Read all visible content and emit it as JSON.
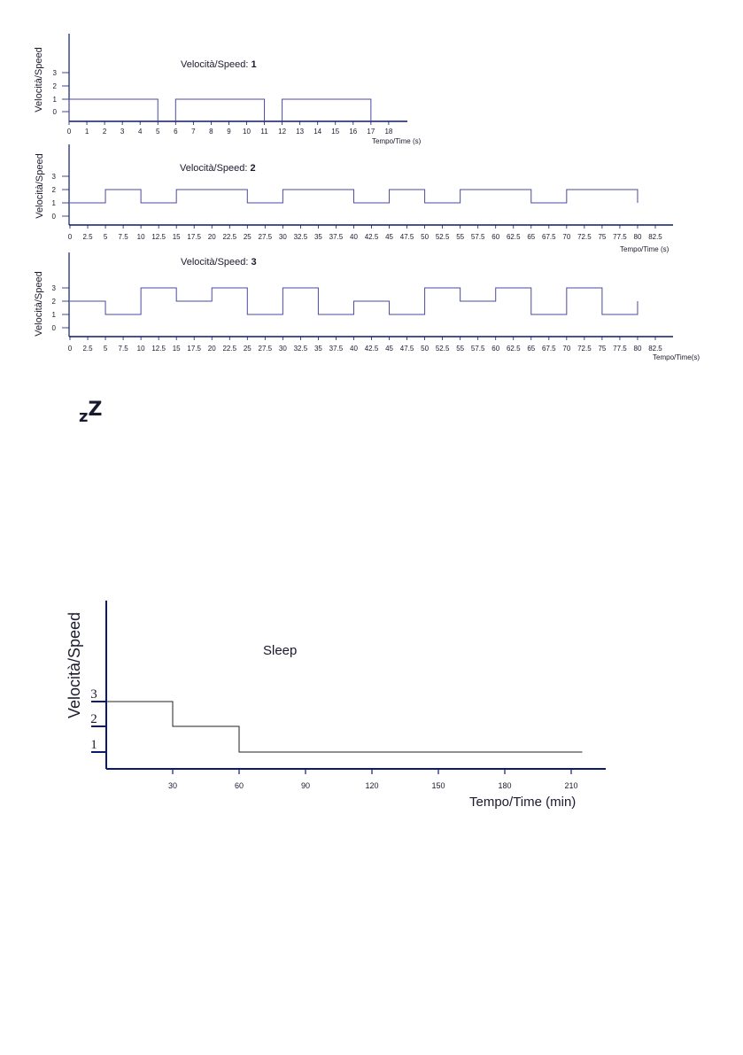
{
  "chart_data": [
    {
      "type": "line",
      "title_prefix": "Velocità/Speed: ",
      "title_value": "1",
      "ylabel": "Velocità/Speed",
      "xlabel": "Tempo/Time (s)",
      "yticks": [
        "0",
        "1",
        "2",
        "3"
      ],
      "xticks": [
        "0",
        "1",
        "2",
        "3",
        "4",
        "5",
        "6",
        "7",
        "8",
        "9",
        "10",
        "11",
        "12",
        "13",
        "14",
        "15",
        "16",
        "17",
        "18"
      ],
      "series": [
        {
          "segments": [
            {
              "x0": 0,
              "x1": 5,
              "y": 1
            },
            {
              "x0": 6,
              "x1": 11,
              "y": 1
            },
            {
              "x0": 12,
              "x1": 17,
              "y": 1
            }
          ]
        }
      ]
    },
    {
      "type": "line",
      "title_prefix": "Velocità/Speed: ",
      "title_value": "2",
      "ylabel": "Velocità/Speed",
      "xlabel": "Tempo/Time (s)",
      "yticks": [
        "0",
        "1",
        "2",
        "3"
      ],
      "xticks": [
        "0",
        "2.5",
        "5",
        "7.5",
        "10",
        "12.5",
        "15",
        "17.5",
        "20",
        "22.5",
        "25",
        "27.5",
        "30",
        "32.5",
        "35",
        "37.5",
        "40",
        "42.5",
        "45",
        "47.5",
        "50",
        "52.5",
        "55",
        "57.5",
        "60",
        "62.5",
        "65",
        "67.5",
        "70",
        "72.5",
        "75",
        "77.5",
        "80",
        "82.5"
      ],
      "series": [
        {
          "x": [
            0,
            5,
            10,
            15,
            25,
            30,
            40,
            45,
            50,
            55,
            65,
            70,
            80
          ],
          "y": [
            1,
            2,
            1,
            2,
            1,
            2,
            1,
            2,
            1,
            2,
            1,
            2,
            1
          ]
        }
      ]
    },
    {
      "type": "line",
      "title_prefix": "Velocità/Speed: ",
      "title_value": "3",
      "ylabel": "Velocità/Speed",
      "xlabel": "Tempo/Time(s)",
      "yticks": [
        "0",
        "1",
        "2",
        "3"
      ],
      "xticks": [
        "0",
        "2.5",
        "5",
        "7.5",
        "10",
        "12.5",
        "15",
        "17.5",
        "20",
        "22.5",
        "25",
        "27.5",
        "30",
        "32.5",
        "35",
        "37.5",
        "40",
        "42.5",
        "45",
        "47.5",
        "50",
        "52.5",
        "55",
        "57.5",
        "60",
        "62.5",
        "65",
        "67.5",
        "70",
        "72.5",
        "75",
        "77.5",
        "80",
        "82.5"
      ],
      "series": [
        {
          "x": [
            0,
            5,
            10,
            15,
            20,
            25,
            30,
            35,
            40,
            45,
            50,
            55,
            60,
            65,
            70,
            75,
            80
          ],
          "y": [
            2,
            1,
            3,
            2,
            3,
            1,
            3,
            1,
            2,
            1,
            3,
            2,
            3,
            1,
            3,
            1,
            2
          ]
        }
      ]
    },
    {
      "type": "line",
      "title": "Sleep",
      "ylabel": "Velocità/Speed",
      "xlabel": "Tempo/Time (min)",
      "yticks": [
        "1",
        "2",
        "3"
      ],
      "xticks": [
        "30",
        "60",
        "90",
        "120",
        "150",
        "180",
        "210"
      ],
      "series": [
        {
          "x": [
            0,
            30,
            60,
            215
          ],
          "y": [
            3,
            2,
            1,
            1
          ]
        }
      ]
    }
  ],
  "sleep_icon": {
    "icon": "sleep-zz-icon",
    "text": "zZ"
  },
  "colors": {
    "line": "#4a4aa0",
    "axis": "#0c1a6b"
  }
}
